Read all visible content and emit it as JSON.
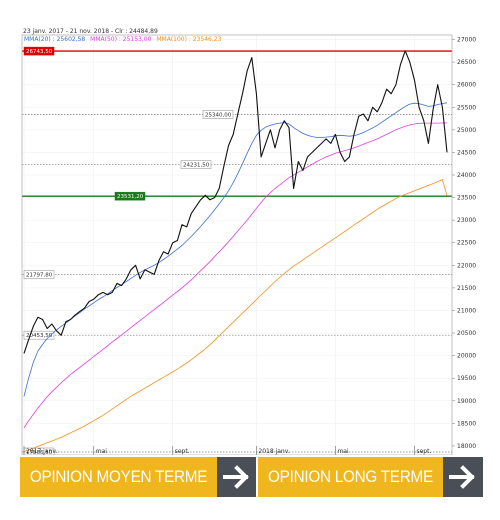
{
  "header": {
    "title_line": "23 janv. 2017 - 21 nov. 2018 - Clr : 24484,89",
    "legend": [
      {
        "text": "MMA(20) : 25602,58",
        "color": "#3a6fd8"
      },
      {
        "text": "MMA(50) : 25153,00",
        "color": "#e040e0"
      },
      {
        "text": "MMA(100) : 23546,23",
        "color": "#f09020"
      }
    ]
  },
  "chart_data": {
    "type": "line",
    "title": "23 janv. 2017 - 21 nov. 2018 - Clr : 24484,89",
    "ylim": [
      17800,
      27100
    ],
    "yticks": [
      18000,
      18500,
      19000,
      19500,
      20000,
      20500,
      21000,
      21500,
      22000,
      22500,
      23000,
      23500,
      24000,
      24500,
      25000,
      25500,
      26000,
      26500,
      27000
    ],
    "xticks": [
      {
        "label": "2017 janv.",
        "i": 0
      },
      {
        "label": "mai",
        "i": 15
      },
      {
        "label": "sept.",
        "i": 32
      },
      {
        "label": "2018 janv.",
        "i": 50
      },
      {
        "label": "mai",
        "i": 67
      },
      {
        "label": "sept.",
        "i": 84
      }
    ],
    "levels": [
      {
        "value": 26743.5,
        "label": "26743,50",
        "color": "#dd0000",
        "style": "solid"
      },
      {
        "value": 25340.0,
        "label": "25340,00",
        "color": "#777777",
        "style": "dotted"
      },
      {
        "value": 24231.5,
        "label": "24231,50",
        "color": "#777777",
        "style": "dotted"
      },
      {
        "value": 23531.2,
        "label": "23531,20",
        "color": "#1a7a1a",
        "style": "solid"
      },
      {
        "value": 21797.8,
        "label": "21797,80",
        "color": "#777777",
        "style": "dotted"
      },
      {
        "value": 20453.5,
        "label": "20453,50",
        "color": "#777777",
        "style": "dotted"
      },
      {
        "value": 17866.5,
        "label": "17866,50",
        "color": "#777777",
        "style": "dotted"
      }
    ],
    "series": [
      {
        "name": "Cours",
        "color": "#111111",
        "values": [
          20050,
          20350,
          20650,
          20850,
          20800,
          20600,
          20700,
          20550,
          20450,
          20750,
          20800,
          20900,
          20980,
          21050,
          21200,
          21250,
          21350,
          21400,
          21350,
          21400,
          21600,
          21550,
          21700,
          21900,
          22000,
          21700,
          21900,
          21850,
          21800,
          22100,
          22300,
          22250,
          22500,
          22550,
          22900,
          22850,
          23150,
          23300,
          23450,
          23550,
          23450,
          23500,
          23700,
          24200,
          24650,
          24900,
          25350,
          25800,
          26300,
          26600,
          25800,
          24400,
          24700,
          25000,
          24600,
          25000,
          25200,
          25050,
          23700,
          24300,
          24100,
          24400,
          24500,
          24600,
          24700,
          24800,
          24700,
          24900,
          24500,
          24300,
          24400,
          24900,
          25300,
          25350,
          25200,
          25500,
          25400,
          25600,
          25900,
          25800,
          26000,
          26450,
          26750,
          26500,
          26100,
          25500,
          25200,
          24700,
          25450,
          26000,
          25500,
          24500
        ]
      },
      {
        "name": "MMA(20)",
        "color": "#3a6fd8",
        "values": [
          19100,
          19500,
          19850,
          20100,
          20250,
          20380,
          20480,
          20570,
          20650,
          20720,
          20800,
          20880,
          20950,
          21030,
          21100,
          21170,
          21240,
          21300,
          21370,
          21440,
          21510,
          21570,
          21640,
          21710,
          21780,
          21840,
          21900,
          21950,
          22000,
          22060,
          22130,
          22200,
          22280,
          22360,
          22440,
          22540,
          22640,
          22750,
          22860,
          22980,
          23100,
          23230,
          23360,
          23500,
          23650,
          23830,
          24030,
          24250,
          24480,
          24700,
          24880,
          24990,
          25060,
          25100,
          25130,
          25150,
          25160,
          25130,
          25050,
          24980,
          24920,
          24880,
          24850,
          24830,
          24830,
          24840,
          24850,
          24870,
          24880,
          24870,
          24860,
          24870,
          24900,
          24940,
          24990,
          25040,
          25100,
          25170,
          25240,
          25310,
          25380,
          25450,
          25520,
          25570,
          25590,
          25580,
          25550,
          25520,
          25530,
          25560,
          25580,
          25602
        ]
      },
      {
        "name": "MMA(50)",
        "color": "#e040e0",
        "values": [
          18400,
          18560,
          18700,
          18840,
          18970,
          19090,
          19200,
          19300,
          19400,
          19490,
          19580,
          19660,
          19740,
          19820,
          19900,
          19980,
          20060,
          20140,
          20220,
          20300,
          20380,
          20460,
          20540,
          20620,
          20700,
          20780,
          20860,
          20940,
          21020,
          21100,
          21180,
          21260,
          21340,
          21420,
          21500,
          21590,
          21680,
          21780,
          21880,
          21980,
          22080,
          22190,
          22300,
          22410,
          22520,
          22640,
          22760,
          22880,
          23000,
          23130,
          23260,
          23390,
          23510,
          23610,
          23700,
          23780,
          23860,
          23940,
          24000,
          24060,
          24120,
          24180,
          24240,
          24300,
          24350,
          24400,
          24440,
          24480,
          24510,
          24540,
          24570,
          24600,
          24640,
          24680,
          24720,
          24760,
          24800,
          24850,
          24900,
          24950,
          25000,
          25040,
          25080,
          25110,
          25130,
          25145,
          25150,
          25150,
          25150,
          25150,
          25152,
          25153
        ]
      },
      {
        "name": "MMA(100)",
        "color": "#f09020",
        "values": [
          17870,
          17910,
          17950,
          17990,
          18030,
          18070,
          18110,
          18150,
          18190,
          18240,
          18290,
          18340,
          18390,
          18440,
          18500,
          18560,
          18620,
          18680,
          18750,
          18820,
          18890,
          18960,
          19030,
          19100,
          19160,
          19220,
          19280,
          19340,
          19400,
          19460,
          19520,
          19580,
          19640,
          19700,
          19770,
          19840,
          19910,
          19990,
          20070,
          20150,
          20240,
          20340,
          20440,
          20540,
          20640,
          20740,
          20840,
          20940,
          21040,
          21140,
          21240,
          21340,
          21440,
          21540,
          21640,
          21730,
          21820,
          21900,
          21980,
          22050,
          22120,
          22190,
          22260,
          22330,
          22400,
          22470,
          22540,
          22610,
          22680,
          22750,
          22820,
          22890,
          22960,
          23030,
          23100,
          23170,
          23240,
          23300,
          23360,
          23420,
          23480,
          23530,
          23570,
          23610,
          23650,
          23690,
          23730,
          23770,
          23810,
          23850,
          23900,
          23546
        ]
      }
    ]
  },
  "banners": [
    {
      "label": "OPINION MOYEN TERME"
    },
    {
      "label": "OPINION LONG TERME"
    }
  ]
}
